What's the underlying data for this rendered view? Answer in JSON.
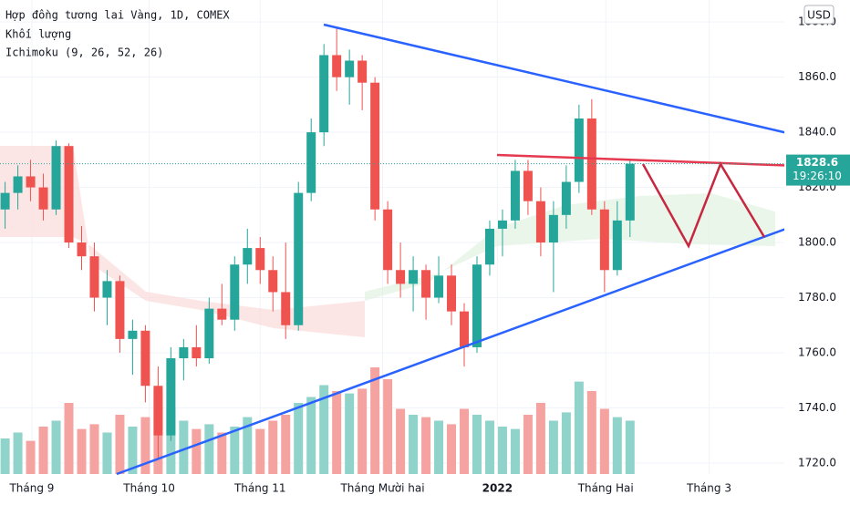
{
  "chart_data": {
    "type": "candlestick",
    "title": "Hợp đồng tương lai Vàng, 1D, COMEX",
    "volume_title": "Khối lượng",
    "indicator_title": "Ichimoku (9, 26, 52, 26)",
    "currency": "USD",
    "last_price": {
      "value": 1828.6,
      "label": "1828.6"
    },
    "countdown": "19:26:10",
    "colors": {
      "up": "#26a69a",
      "down": "#ef5350",
      "up_volume": "#8fd3cb",
      "down_volume": "#f5a3a1"
    },
    "ylim": [
      1716,
      1888
    ],
    "yticks": [
      {
        "value": 1720,
        "label": "1720.0"
      },
      {
        "value": 1740,
        "label": "1740.0"
      },
      {
        "value": 1760,
        "label": "1760.0"
      },
      {
        "value": 1780,
        "label": "1780.0"
      },
      {
        "value": 1800,
        "label": "1800.0"
      },
      {
        "value": 1820,
        "label": "1820.0"
      },
      {
        "value": 1840,
        "label": "1840.0"
      },
      {
        "value": 1860,
        "label": "1860.0"
      },
      {
        "value": 1880,
        "label": "1880.0"
      }
    ],
    "xlim": [
      -0.4,
      61.1
    ],
    "xticks": [
      {
        "value": 2.1,
        "label": "Tháng 9"
      },
      {
        "value": 11.3,
        "label": "Tháng 10"
      },
      {
        "value": 20,
        "label": "Tháng 11"
      },
      {
        "value": 29.6,
        "label": "Tháng Mười hai"
      },
      {
        "value": 38.6,
        "label": "2022"
      },
      {
        "value": 47.1,
        "label": "Tháng Hai"
      },
      {
        "value": 55.2,
        "label": "Tháng 3"
      }
    ],
    "open": [
      1812,
      1818,
      1824,
      1820,
      1812,
      1835,
      1800,
      1795,
      1780,
      1786,
      1765,
      1768,
      1748,
      1730,
      1758,
      1762,
      1758,
      1776,
      1772,
      1792,
      1798,
      1790,
      1782,
      1770,
      1818,
      1840,
      1868,
      1860,
      1866,
      1858,
      1812,
      1790,
      1785,
      1790,
      1780,
      1788,
      1775,
      1762,
      1792,
      1805,
      1808,
      1826,
      1815,
      1800,
      1810,
      1822,
      1845,
      1812,
      1790,
      1808
    ],
    "high": [
      1822,
      1828,
      1830,
      1825,
      1837,
      1836,
      1806,
      1800,
      1790,
      1788,
      1772,
      1770,
      1755,
      1762,
      1765,
      1770,
      1780,
      1785,
      1795,
      1805,
      1802,
      1795,
      1800,
      1822,
      1845,
      1872,
      1878,
      1870,
      1868,
      1860,
      1815,
      1800,
      1795,
      1792,
      1795,
      1792,
      1778,
      1795,
      1808,
      1812,
      1830,
      1830,
      1820,
      1815,
      1828,
      1850,
      1852,
      1815,
      1815,
      1830
    ],
    "low": [
      1805,
      1812,
      1815,
      1808,
      1810,
      1798,
      1790,
      1775,
      1770,
      1760,
      1752,
      1742,
      1722,
      1728,
      1750,
      1755,
      1756,
      1770,
      1768,
      1785,
      1785,
      1775,
      1765,
      1768,
      1815,
      1835,
      1855,
      1850,
      1848,
      1808,
      1785,
      1780,
      1775,
      1772,
      1778,
      1770,
      1755,
      1760,
      1788,
      1795,
      1805,
      1810,
      1795,
      1782,
      1805,
      1818,
      1810,
      1782,
      1788,
      1802
    ],
    "close": [
      1818,
      1824,
      1820,
      1812,
      1835,
      1800,
      1795,
      1780,
      1786,
      1765,
      1768,
      1748,
      1730,
      1758,
      1762,
      1758,
      1776,
      1772,
      1792,
      1798,
      1790,
      1782,
      1770,
      1818,
      1840,
      1868,
      1860,
      1866,
      1858,
      1812,
      1790,
      1785,
      1790,
      1780,
      1788,
      1775,
      1762,
      1792,
      1805,
      1808,
      1826,
      1815,
      1800,
      1810,
      1822,
      1845,
      1812,
      1790,
      1808,
      1828.6
    ],
    "volume_lim": [
      0,
      100
    ],
    "volume": [
      30,
      35,
      28,
      40,
      45,
      60,
      38,
      42,
      35,
      50,
      40,
      48,
      70,
      55,
      45,
      38,
      42,
      35,
      40,
      48,
      38,
      45,
      50,
      60,
      65,
      75,
      70,
      68,
      72,
      90,
      80,
      55,
      50,
      48,
      45,
      42,
      55,
      50,
      45,
      40,
      38,
      50,
      60,
      45,
      52,
      78,
      70,
      55,
      48,
      45
    ]
  }
}
